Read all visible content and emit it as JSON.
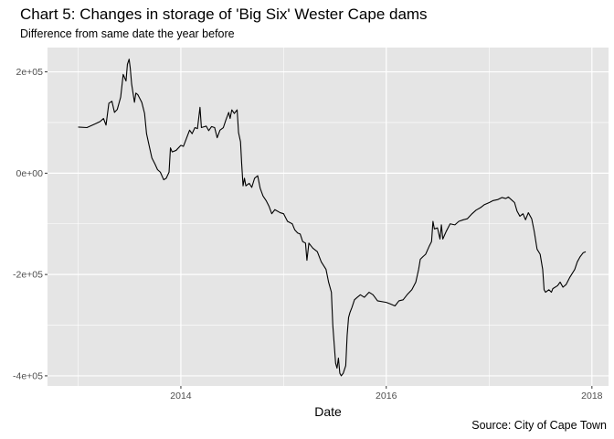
{
  "chart_data": {
    "type": "line",
    "title": "Chart 5: Changes in storage of 'Big Six' Wester Cape dams",
    "subtitle": "Difference from same date the year before",
    "caption": "Source: City of Cape Town",
    "xlabel": "Date",
    "ylabel": "",
    "xlim": [
      "2012-09-14",
      "2018-03-01"
    ],
    "ylim": [
      -420000,
      248000
    ],
    "x_ticks": [
      {
        "date": "2014-01-01",
        "label": "2014"
      },
      {
        "date": "2016-01-01",
        "label": "2016"
      },
      {
        "date": "2018-01-01",
        "label": "2018"
      }
    ],
    "y_ticks": [
      {
        "value": 200000,
        "label": "2e+05"
      },
      {
        "value": 0,
        "label": "0e+00"
      },
      {
        "value": -200000,
        "label": "-2e+05"
      },
      {
        "value": -400000,
        "label": "-4e+05"
      }
    ],
    "grid": true,
    "colors": {
      "panel": "#e5e5e5",
      "grid": "#ffffff",
      "line": "#000000"
    },
    "series": [
      {
        "points": [
          [
            "2013-01-01",
            91000
          ],
          [
            "2013-02-01",
            90000
          ],
          [
            "2013-03-01",
            97000
          ],
          [
            "2013-03-20",
            102000
          ],
          [
            "2013-04-01",
            108000
          ],
          [
            "2013-04-10",
            95000
          ],
          [
            "2013-04-20",
            138000
          ],
          [
            "2013-05-01",
            142000
          ],
          [
            "2013-05-10",
            120000
          ],
          [
            "2013-05-20",
            126000
          ],
          [
            "2013-06-01",
            150000
          ],
          [
            "2013-06-10",
            195000
          ],
          [
            "2013-06-20",
            182000
          ],
          [
            "2013-06-25",
            215000
          ],
          [
            "2013-07-01",
            225000
          ],
          [
            "2013-07-05",
            208000
          ],
          [
            "2013-07-10",
            176000
          ],
          [
            "2013-07-20",
            140000
          ],
          [
            "2013-07-25",
            158000
          ],
          [
            "2013-08-01",
            155000
          ],
          [
            "2013-08-15",
            140000
          ],
          [
            "2013-08-25",
            118000
          ],
          [
            "2013-09-01",
            78000
          ],
          [
            "2013-09-10",
            55000
          ],
          [
            "2013-09-20",
            30000
          ],
          [
            "2013-10-01",
            18000
          ],
          [
            "2013-10-10",
            7000
          ],
          [
            "2013-10-20",
            2000
          ],
          [
            "2013-11-01",
            -13000
          ],
          [
            "2013-11-10",
            -10000
          ],
          [
            "2013-11-20",
            2000
          ],
          [
            "2013-11-25",
            50000
          ],
          [
            "2013-12-01",
            42000
          ],
          [
            "2013-12-15",
            45000
          ],
          [
            "2014-01-01",
            55000
          ],
          [
            "2014-01-10",
            53000
          ],
          [
            "2014-02-01",
            85000
          ],
          [
            "2014-02-10",
            78000
          ],
          [
            "2014-02-20",
            90000
          ],
          [
            "2014-03-01",
            88000
          ],
          [
            "2014-03-10",
            130000
          ],
          [
            "2014-03-15",
            90000
          ],
          [
            "2014-04-01",
            93000
          ],
          [
            "2014-04-10",
            84000
          ],
          [
            "2014-04-20",
            92000
          ],
          [
            "2014-05-01",
            90000
          ],
          [
            "2014-05-10",
            70000
          ],
          [
            "2014-05-20",
            85000
          ],
          [
            "2014-06-01",
            90000
          ],
          [
            "2014-06-10",
            105000
          ],
          [
            "2014-06-20",
            120000
          ],
          [
            "2014-06-25",
            108000
          ],
          [
            "2014-07-01",
            125000
          ],
          [
            "2014-07-10",
            118000
          ],
          [
            "2014-07-20",
            125000
          ],
          [
            "2014-07-25",
            80000
          ],
          [
            "2014-08-01",
            62000
          ],
          [
            "2014-08-05",
            20000
          ],
          [
            "2014-08-10",
            -25000
          ],
          [
            "2014-08-15",
            -10000
          ],
          [
            "2014-08-20",
            -25000
          ],
          [
            "2014-09-01",
            -20000
          ],
          [
            "2014-09-10",
            -28000
          ],
          [
            "2014-09-20",
            -10000
          ],
          [
            "2014-10-01",
            -5000
          ],
          [
            "2014-10-10",
            -30000
          ],
          [
            "2014-10-20",
            -45000
          ],
          [
            "2014-11-01",
            -55000
          ],
          [
            "2014-11-10",
            -65000
          ],
          [
            "2014-11-20",
            -80000
          ],
          [
            "2014-12-01",
            -72000
          ],
          [
            "2014-12-20",
            -78000
          ],
          [
            "2015-01-01",
            -80000
          ],
          [
            "2015-01-15",
            -95000
          ],
          [
            "2015-02-01",
            -100000
          ],
          [
            "2015-02-10",
            -112000
          ],
          [
            "2015-02-20",
            -118000
          ],
          [
            "2015-03-01",
            -120000
          ],
          [
            "2015-03-10",
            -135000
          ],
          [
            "2015-03-20",
            -138000
          ],
          [
            "2015-03-25",
            -172000
          ],
          [
            "2015-04-01",
            -138000
          ],
          [
            "2015-04-15",
            -148000
          ],
          [
            "2015-05-01",
            -155000
          ],
          [
            "2015-05-15",
            -175000
          ],
          [
            "2015-06-01",
            -190000
          ],
          [
            "2015-06-10",
            -215000
          ],
          [
            "2015-06-20",
            -235000
          ],
          [
            "2015-06-25",
            -300000
          ],
          [
            "2015-07-01",
            -345000
          ],
          [
            "2015-07-05",
            -375000
          ],
          [
            "2015-07-10",
            -385000
          ],
          [
            "2015-07-15",
            -365000
          ],
          [
            "2015-07-20",
            -395000
          ],
          [
            "2015-07-25",
            -400000
          ],
          [
            "2015-08-01",
            -395000
          ],
          [
            "2015-08-10",
            -380000
          ],
          [
            "2015-08-15",
            -320000
          ],
          [
            "2015-08-20",
            -285000
          ],
          [
            "2015-08-25",
            -275000
          ],
          [
            "2015-09-01",
            -265000
          ],
          [
            "2015-09-10",
            -250000
          ],
          [
            "2015-09-20",
            -245000
          ],
          [
            "2015-10-01",
            -240000
          ],
          [
            "2015-10-15",
            -245000
          ],
          [
            "2015-11-01",
            -235000
          ],
          [
            "2015-11-15",
            -240000
          ],
          [
            "2015-12-01",
            -252000
          ],
          [
            "2016-01-01",
            -255000
          ],
          [
            "2016-01-15",
            -258000
          ],
          [
            "2016-02-01",
            -262000
          ],
          [
            "2016-02-15",
            -252000
          ],
          [
            "2016-03-01",
            -250000
          ],
          [
            "2016-03-15",
            -240000
          ],
          [
            "2016-04-01",
            -230000
          ],
          [
            "2016-04-15",
            -215000
          ],
          [
            "2016-04-25",
            -190000
          ],
          [
            "2016-05-01",
            -170000
          ],
          [
            "2016-05-10",
            -165000
          ],
          [
            "2016-05-20",
            -160000
          ],
          [
            "2016-06-01",
            -145000
          ],
          [
            "2016-06-10",
            -135000
          ],
          [
            "2016-06-15",
            -95000
          ],
          [
            "2016-06-20",
            -110000
          ],
          [
            "2016-07-01",
            -108000
          ],
          [
            "2016-07-10",
            -130000
          ],
          [
            "2016-07-15",
            -102000
          ],
          [
            "2016-07-20",
            -130000
          ],
          [
            "2016-08-01",
            -115000
          ],
          [
            "2016-08-15",
            -100000
          ],
          [
            "2016-09-01",
            -102000
          ],
          [
            "2016-09-15",
            -95000
          ],
          [
            "2016-10-01",
            -92000
          ],
          [
            "2016-10-15",
            -90000
          ],
          [
            "2016-11-01",
            -80000
          ],
          [
            "2016-11-15",
            -73000
          ],
          [
            "2016-12-01",
            -68000
          ],
          [
            "2016-12-15",
            -62000
          ],
          [
            "2017-01-01",
            -58000
          ],
          [
            "2017-01-15",
            -54000
          ],
          [
            "2017-02-01",
            -52000
          ],
          [
            "2017-02-15",
            -48000
          ],
          [
            "2017-03-01",
            -50000
          ],
          [
            "2017-03-10",
            -47000
          ],
          [
            "2017-03-20",
            -52000
          ],
          [
            "2017-04-01",
            -58000
          ],
          [
            "2017-04-10",
            -75000
          ],
          [
            "2017-04-20",
            -85000
          ],
          [
            "2017-05-01",
            -80000
          ],
          [
            "2017-05-10",
            -92000
          ],
          [
            "2017-05-20",
            -78000
          ],
          [
            "2017-06-01",
            -90000
          ],
          [
            "2017-06-10",
            -115000
          ],
          [
            "2017-06-20",
            -150000
          ],
          [
            "2017-07-01",
            -160000
          ],
          [
            "2017-07-10",
            -190000
          ],
          [
            "2017-07-15",
            -230000
          ],
          [
            "2017-07-20",
            -235000
          ],
          [
            "2017-08-01",
            -230000
          ],
          [
            "2017-08-10",
            -235000
          ],
          [
            "2017-08-15",
            -228000
          ],
          [
            "2017-09-01",
            -222000
          ],
          [
            "2017-09-10",
            -215000
          ],
          [
            "2017-09-20",
            -225000
          ],
          [
            "2017-10-01",
            -220000
          ],
          [
            "2017-10-15",
            -205000
          ],
          [
            "2017-11-01",
            -190000
          ],
          [
            "2017-11-10",
            -175000
          ],
          [
            "2017-11-20",
            -165000
          ],
          [
            "2017-12-01",
            -157000
          ],
          [
            "2017-12-10",
            -155000
          ]
        ]
      }
    ]
  }
}
